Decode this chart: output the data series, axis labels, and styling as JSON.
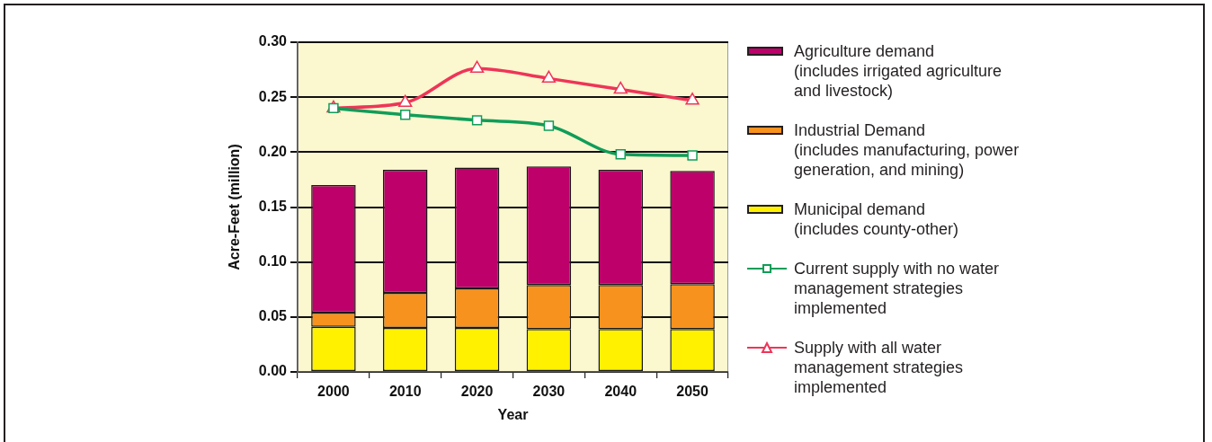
{
  "chart_data": {
    "type": "bar",
    "xlabel": "Year",
    "ylabel": "Acre-Feet (million)",
    "categories": [
      "2000",
      "2010",
      "2020",
      "2030",
      "2040",
      "2050"
    ],
    "stacked": true,
    "series": [
      {
        "name": "Municipal demand (includes county-other)",
        "color": "#fff100",
        "values": [
          0.041,
          0.04,
          0.04,
          0.039,
          0.039,
          0.039
        ]
      },
      {
        "name": "Industrial Demand (includes manufacturing, power generation, and mining)",
        "color": "#f7921e",
        "values": [
          0.013,
          0.032,
          0.036,
          0.04,
          0.04,
          0.041
        ]
      },
      {
        "name": "Agriculture demand (includes irrigated agriculture and livestock)",
        "color": "#be006b",
        "values": [
          0.116,
          0.112,
          0.11,
          0.108,
          0.105,
          0.103
        ]
      },
      {
        "name": "Current supply with no water management strategies implemented",
        "type": "line",
        "color": "#109d58",
        "marker": "square",
        "values": [
          0.24,
          0.234,
          0.229,
          0.224,
          0.198,
          0.197
        ]
      },
      {
        "name": "Supply with all water management strategies implemented",
        "type": "line",
        "color": "#ee3558",
        "marker": "triangle",
        "values": [
          0.24,
          0.245,
          0.276,
          0.267,
          0.257,
          0.247
        ]
      }
    ],
    "ylim": [
      0,
      0.3
    ],
    "yticks": [
      {
        "value": 0,
        "label": "0.00"
      },
      {
        "value": 0.05,
        "label": "0.05"
      },
      {
        "value": 0.1,
        "label": "0.10"
      },
      {
        "value": 0.15,
        "label": "0.15"
      },
      {
        "value": 0.2,
        "label": "0.20"
      },
      {
        "value": 0.25,
        "label": "0.25"
      },
      {
        "value": 0.3,
        "label": "0.30"
      }
    ],
    "grid": "y",
    "legend": "right"
  }
}
